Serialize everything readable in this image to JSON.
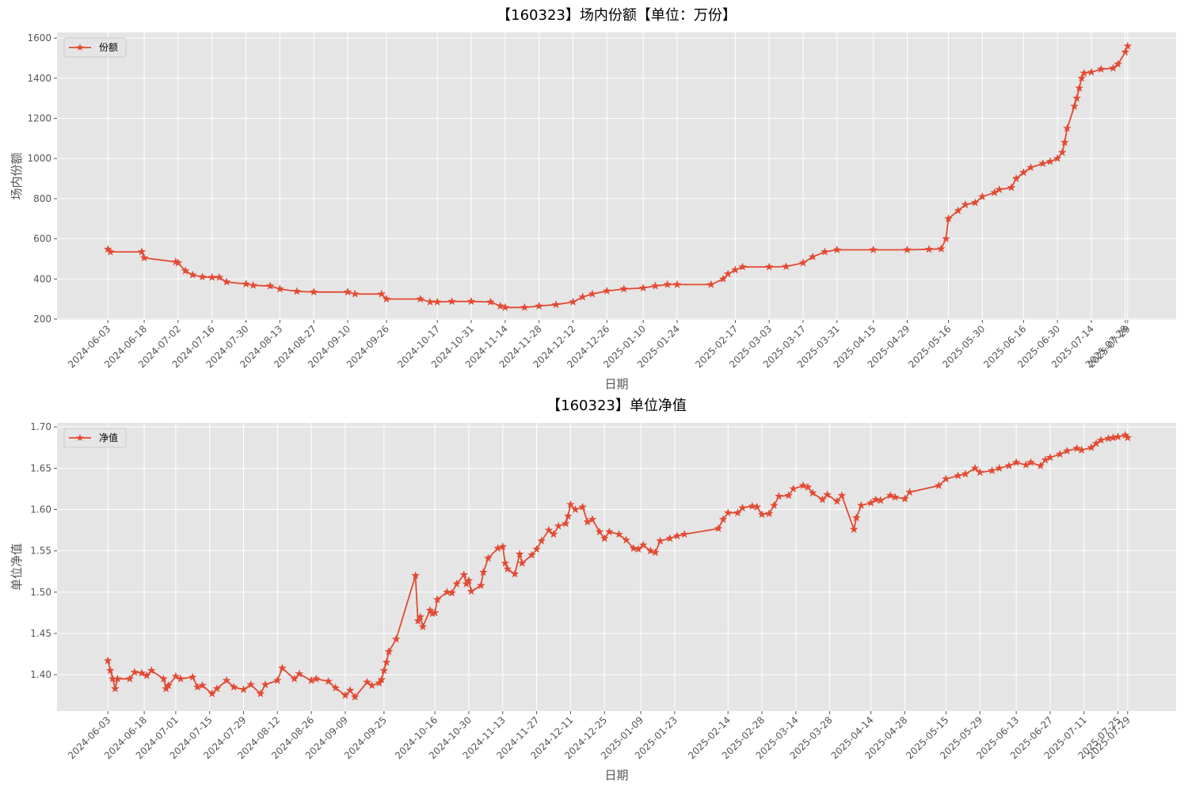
{
  "chart_data": [
    {
      "type": "line",
      "title": "【160323】场内份额【单位：万份】",
      "x_label": "日期",
      "y_label": "场内份额",
      "xlim": [
        "2024-05-13",
        "2025-08-18"
      ],
      "ylim": [
        196,
        1628
      ],
      "xticks": [
        "2024-06-03",
        "2024-06-18",
        "2024-07-02",
        "2024-07-16",
        "2024-07-30",
        "2024-08-13",
        "2024-08-27",
        "2024-09-10",
        "2024-09-26",
        "2024-10-17",
        "2024-10-31",
        "2024-11-14",
        "2024-11-28",
        "2024-12-12",
        "2024-12-26",
        "2025-01-10",
        "2025-01-24",
        "2025-02-17",
        "2025-03-03",
        "2025-03-17",
        "2025-03-31",
        "2025-04-15",
        "2025-04-29",
        "2025-05-16",
        "2025-05-30",
        "2025-06-16",
        "2025-06-30",
        "2025-07-14",
        "2025-07-28",
        "2025-07-29"
      ],
      "yticks": [
        200,
        400,
        600,
        800,
        1000,
        1200,
        1400,
        1600
      ],
      "grid": true,
      "legend": "upper left",
      "x": [
        "2024-06-03",
        "2024-06-04",
        "2024-06-17",
        "2024-06-18",
        "2024-07-01",
        "2024-07-02",
        "2024-07-05",
        "2024-07-08",
        "2024-07-12",
        "2024-07-16",
        "2024-07-19",
        "2024-07-22",
        "2024-07-30",
        "2024-08-02",
        "2024-08-09",
        "2024-08-13",
        "2024-08-20",
        "2024-08-27",
        "2024-09-10",
        "2024-09-13",
        "2024-09-24",
        "2024-09-26",
        "2024-10-10",
        "2024-10-14",
        "2024-10-17",
        "2024-10-23",
        "2024-10-31",
        "2024-11-08",
        "2024-11-12",
        "2024-11-14",
        "2024-11-22",
        "2024-11-28",
        "2024-12-05",
        "2024-12-12",
        "2024-12-16",
        "2024-12-20",
        "2024-12-26",
        "2025-01-02",
        "2025-01-10",
        "2025-01-15",
        "2025-01-20",
        "2025-01-24",
        "2025-02-07",
        "2025-02-12",
        "2025-02-14",
        "2025-02-17",
        "2025-02-20",
        "2025-03-03",
        "2025-03-10",
        "2025-03-17",
        "2025-03-21",
        "2025-03-26",
        "2025-03-31",
        "2025-04-15",
        "2025-04-29",
        "2025-05-08",
        "2025-05-13",
        "2025-05-15",
        "2025-05-16",
        "2025-05-20",
        "2025-05-23",
        "2025-05-27",
        "2025-05-30",
        "2025-06-04",
        "2025-06-06",
        "2025-06-11",
        "2025-06-13",
        "2025-06-16",
        "2025-06-19",
        "2025-06-24",
        "2025-06-27",
        "2025-06-30",
        "2025-07-02",
        "2025-07-03",
        "2025-07-04",
        "2025-07-07",
        "2025-07-08",
        "2025-07-09",
        "2025-07-10",
        "2025-07-11",
        "2025-07-14",
        "2025-07-18",
        "2025-07-23",
        "2025-07-25",
        "2025-07-28",
        "2025-07-29"
      ],
      "series": [
        {
          "name": "份额",
          "color": "#E24A33",
          "values": [
            548,
            535,
            535,
            505,
            485,
            480,
            440,
            420,
            410,
            408,
            408,
            385,
            375,
            368,
            365,
            350,
            338,
            335,
            335,
            325,
            325,
            300,
            300,
            285,
            285,
            288,
            288,
            285,
            265,
            258,
            258,
            265,
            272,
            285,
            310,
            325,
            340,
            350,
            355,
            365,
            372,
            372,
            372,
            400,
            425,
            445,
            460,
            460,
            462,
            480,
            510,
            535,
            545,
            545,
            545,
            548,
            550,
            600,
            700,
            740,
            770,
            780,
            810,
            830,
            845,
            855,
            900,
            930,
            955,
            975,
            985,
            1000,
            1030,
            1080,
            1150,
            1260,
            1300,
            1350,
            1400,
            1425,
            1430,
            1445,
            1450,
            1470,
            1530,
            1560
          ]
        }
      ]
    },
    {
      "type": "line",
      "title": "【160323】单位净值",
      "x_label": "日期",
      "y_label": "单位净值",
      "xlim": [
        "2024-05-13",
        "2025-08-18"
      ],
      "ylim": [
        1.356,
        1.705
      ],
      "xticks": [
        "2024-06-03",
        "2024-06-18",
        "2024-07-01",
        "2024-07-15",
        "2024-07-29",
        "2024-08-12",
        "2024-08-26",
        "2024-09-09",
        "2024-09-25",
        "2024-10-16",
        "2024-10-30",
        "2024-11-13",
        "2024-11-27",
        "2024-12-11",
        "2024-12-25",
        "2025-01-09",
        "2025-01-23",
        "2025-02-14",
        "2025-02-28",
        "2025-03-14",
        "2025-03-28",
        "2025-04-14",
        "2025-04-28",
        "2025-05-15",
        "2025-05-29",
        "2025-06-13",
        "2025-06-27",
        "2025-07-11",
        "2025-07-25",
        "2025-07-29"
      ],
      "yticks": [
        {
          "value": 1.4,
          "label": "1.40"
        },
        1.45,
        {
          "value": 1.5,
          "label": "1.50"
        },
        1.55,
        {
          "value": 1.6,
          "label": "1.60"
        },
        1.65,
        {
          "value": 1.7,
          "label": "1.70"
        }
      ],
      "grid": true,
      "legend": "upper left",
      "x": [
        "2024-06-03",
        "2024-06-04",
        "2024-06-05",
        "2024-06-06",
        "2024-06-07",
        "2024-06-12",
        "2024-06-14",
        "2024-06-17",
        "2024-06-19",
        "2024-06-21",
        "2024-06-26",
        "2024-06-27",
        "2024-06-28",
        "2024-07-01",
        "2024-07-03",
        "2024-07-08",
        "2024-07-10",
        "2024-07-12",
        "2024-07-16",
        "2024-07-18",
        "2024-07-22",
        "2024-07-25",
        "2024-07-29",
        "2024-08-01",
        "2024-08-05",
        "2024-08-07",
        "2024-08-12",
        "2024-08-14",
        "2024-08-19",
        "2024-08-21",
        "2024-08-26",
        "2024-08-28",
        "2024-09-02",
        "2024-09-05",
        "2024-09-09",
        "2024-09-11",
        "2024-09-13",
        "2024-09-18",
        "2024-09-20",
        "2024-09-23",
        "2024-09-24",
        "2024-09-25",
        "2024-09-26",
        "2024-09-27",
        "2024-09-30",
        "2024-10-08",
        "2024-10-09",
        "2024-10-10",
        "2024-10-11",
        "2024-10-14",
        "2024-10-15",
        "2024-10-16",
        "2024-10-17",
        "2024-10-21",
        "2024-10-23",
        "2024-10-25",
        "2024-10-28",
        "2024-10-29",
        "2024-10-30",
        "2024-10-31",
        "2024-11-04",
        "2024-11-05",
        "2024-11-07",
        "2024-11-11",
        "2024-11-13",
        "2024-11-14",
        "2024-11-15",
        "2024-11-18",
        "2024-11-20",
        "2024-11-21",
        "2024-11-25",
        "2024-11-27",
        "2024-11-29",
        "2024-12-02",
        "2024-12-04",
        "2024-12-06",
        "2024-12-09",
        "2024-12-10",
        "2024-12-11",
        "2024-12-13",
        "2024-12-16",
        "2024-12-18",
        "2024-12-20",
        "2024-12-23",
        "2024-12-25",
        "2024-12-27",
        "2024-12-31",
        "2025-01-03",
        "2025-01-06",
        "2025-01-08",
        "2025-01-10",
        "2025-01-13",
        "2025-01-15",
        "2025-01-17",
        "2025-01-21",
        "2025-01-24",
        "2025-01-27",
        "2025-02-10",
        "2025-02-12",
        "2025-02-14",
        "2025-02-18",
        "2025-02-20",
        "2025-02-24",
        "2025-02-26",
        "2025-02-28",
        "2025-03-03",
        "2025-03-05",
        "2025-03-07",
        "2025-03-11",
        "2025-03-13",
        "2025-03-17",
        "2025-03-19",
        "2025-03-21",
        "2025-03-25",
        "2025-03-27",
        "2025-03-31",
        "2025-04-02",
        "2025-04-07",
        "2025-04-08",
        "2025-04-10",
        "2025-04-14",
        "2025-04-16",
        "2025-04-18",
        "2025-04-22",
        "2025-04-24",
        "2025-04-28",
        "2025-04-30",
        "2025-05-12",
        "2025-05-15",
        "2025-05-20",
        "2025-05-23",
        "2025-05-27",
        "2025-05-29",
        "2025-06-03",
        "2025-06-06",
        "2025-06-10",
        "2025-06-13",
        "2025-06-17",
        "2025-06-19",
        "2025-06-23",
        "2025-06-25",
        "2025-06-27",
        "2025-07-01",
        "2025-07-04",
        "2025-07-08",
        "2025-07-10",
        "2025-07-14",
        "2025-07-16",
        "2025-07-18",
        "2025-07-21",
        "2025-07-23",
        "2025-07-25",
        "2025-07-28",
        "2025-07-29"
      ],
      "series": [
        {
          "name": "净值",
          "color": "#E24A33",
          "values": [
            1.417,
            1.405,
            1.395,
            1.383,
            1.395,
            1.395,
            1.403,
            1.402,
            1.399,
            1.405,
            1.395,
            1.383,
            1.387,
            1.398,
            1.395,
            1.397,
            1.385,
            1.387,
            1.377,
            1.383,
            1.393,
            1.385,
            1.382,
            1.388,
            1.377,
            1.388,
            1.393,
            1.408,
            1.395,
            1.401,
            1.393,
            1.395,
            1.392,
            1.384,
            1.375,
            1.381,
            1.373,
            1.391,
            1.387,
            1.39,
            1.394,
            1.405,
            1.415,
            1.428,
            1.443,
            1.52,
            1.465,
            1.47,
            1.458,
            1.478,
            1.474,
            1.475,
            1.491,
            1.5,
            1.499,
            1.51,
            1.521,
            1.51,
            1.514,
            1.501,
            1.508,
            1.524,
            1.541,
            1.553,
            1.555,
            1.535,
            1.528,
            1.522,
            1.546,
            1.535,
            1.545,
            1.552,
            1.562,
            1.575,
            1.57,
            1.58,
            1.583,
            1.592,
            1.606,
            1.6,
            1.603,
            1.585,
            1.588,
            1.573,
            1.565,
            1.573,
            1.57,
            1.563,
            1.553,
            1.552,
            1.557,
            1.55,
            1.548,
            1.562,
            1.565,
            1.568,
            1.57,
            1.577,
            1.588,
            1.596,
            1.596,
            1.602,
            1.604,
            1.603,
            1.594,
            1.595,
            1.605,
            1.616,
            1.617,
            1.625,
            1.629,
            1.627,
            1.62,
            1.612,
            1.618,
            1.61,
            1.617,
            1.576,
            1.59,
            1.605,
            1.608,
            1.612,
            1.611,
            1.617,
            1.615,
            1.613,
            1.621,
            1.629,
            1.637,
            1.641,
            1.643,
            1.65,
            1.645,
            1.647,
            1.65,
            1.653,
            1.657,
            1.654,
            1.657,
            1.653,
            1.66,
            1.663,
            1.667,
            1.671,
            1.674,
            1.672,
            1.675,
            1.68,
            1.684,
            1.686,
            1.687,
            1.688,
            1.69,
            1.687
          ]
        }
      ]
    }
  ]
}
